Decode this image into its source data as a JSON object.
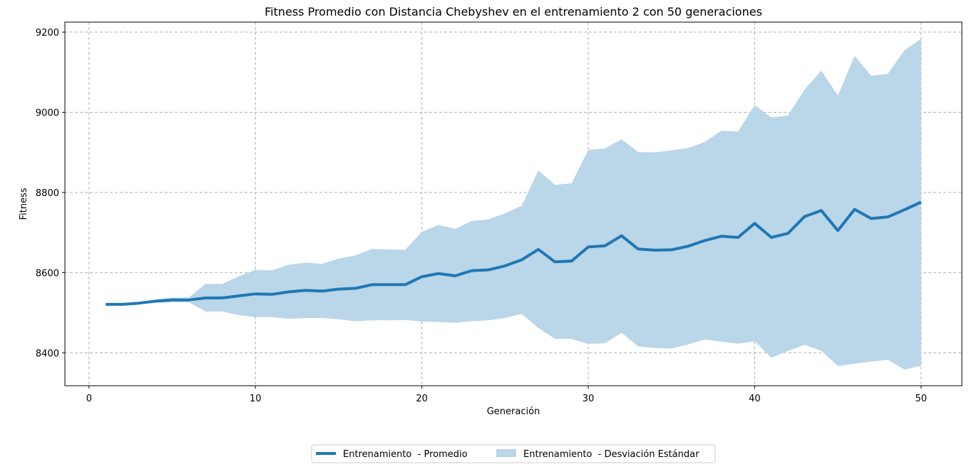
{
  "chart_data": {
    "type": "line",
    "title": "Fitness Promedio con Distancia Chebyshev en el entrenamiento 2 con 50 generaciones",
    "xlabel": "Generación",
    "ylabel": "Fitness",
    "xlim": [
      -1.45,
      52.45
    ],
    "ylim": [
      8318,
      9225
    ],
    "xticks": [
      0,
      10,
      20,
      30,
      40,
      50
    ],
    "yticks": [
      8400,
      8600,
      8800,
      9000,
      9200
    ],
    "grid": true,
    "legend_position": "bottom-center",
    "colors": {
      "line": "#1f77b4",
      "band": "#bad6e9",
      "grid": "#b0b0b0"
    },
    "x": [
      1,
      2,
      3,
      4,
      5,
      6,
      7,
      8,
      9,
      10,
      11,
      12,
      13,
      14,
      15,
      16,
      17,
      18,
      19,
      20,
      21,
      22,
      23,
      24,
      25,
      26,
      27,
      28,
      29,
      30,
      31,
      32,
      33,
      34,
      35,
      36,
      37,
      38,
      39,
      40,
      41,
      42,
      43,
      44,
      45,
      46,
      47,
      48,
      49,
      50
    ],
    "series": [
      {
        "name": "Entrenamiento  - Promedio",
        "values": [
          8521,
          8521,
          8524,
          8529,
          8532,
          8532,
          8537,
          8537,
          8542,
          8547,
          8546,
          8552,
          8556,
          8554,
          8559,
          8561,
          8570,
          8570,
          8570,
          8590,
          8598,
          8592,
          8605,
          8607,
          8617,
          8632,
          8658,
          8627,
          8629,
          8664,
          8667,
          8692,
          8659,
          8656,
          8657,
          8666,
          8680,
          8691,
          8688,
          8723,
          8688,
          8698,
          8740,
          8755,
          8705,
          8758,
          8735,
          8739,
          8757,
          8776
        ]
      },
      {
        "name": "Entrenamiento  - Desviación Estándar",
        "upper": [
          8521,
          8521,
          8525,
          8533,
          8538,
          8538,
          8572,
          8572,
          8591,
          8607,
          8606,
          8620,
          8625,
          8622,
          8635,
          8643,
          8659,
          8658,
          8657,
          8702,
          8719,
          8709,
          8729,
          8733,
          8748,
          8767,
          8855,
          8819,
          8823,
          8906,
          8910,
          8933,
          8901,
          8900,
          8905,
          8911,
          8926,
          8954,
          8952,
          9018,
          8987,
          8992,
          9057,
          9104,
          9042,
          9141,
          9091,
          9096,
          9155,
          9183
        ],
        "lower": [
          8521,
          8521,
          8523,
          8525,
          8526,
          8526,
          8503,
          8503,
          8494,
          8489,
          8489,
          8485,
          8487,
          8487,
          8484,
          8479,
          8481,
          8481,
          8482,
          8478,
          8477,
          8475,
          8479,
          8481,
          8487,
          8497,
          8462,
          8435,
          8435,
          8422,
          8424,
          8450,
          8416,
          8412,
          8411,
          8421,
          8433,
          8428,
          8423,
          8429,
          8388,
          8405,
          8420,
          8405,
          8367,
          8373,
          8378,
          8383,
          8358,
          8368
        ]
      }
    ]
  }
}
